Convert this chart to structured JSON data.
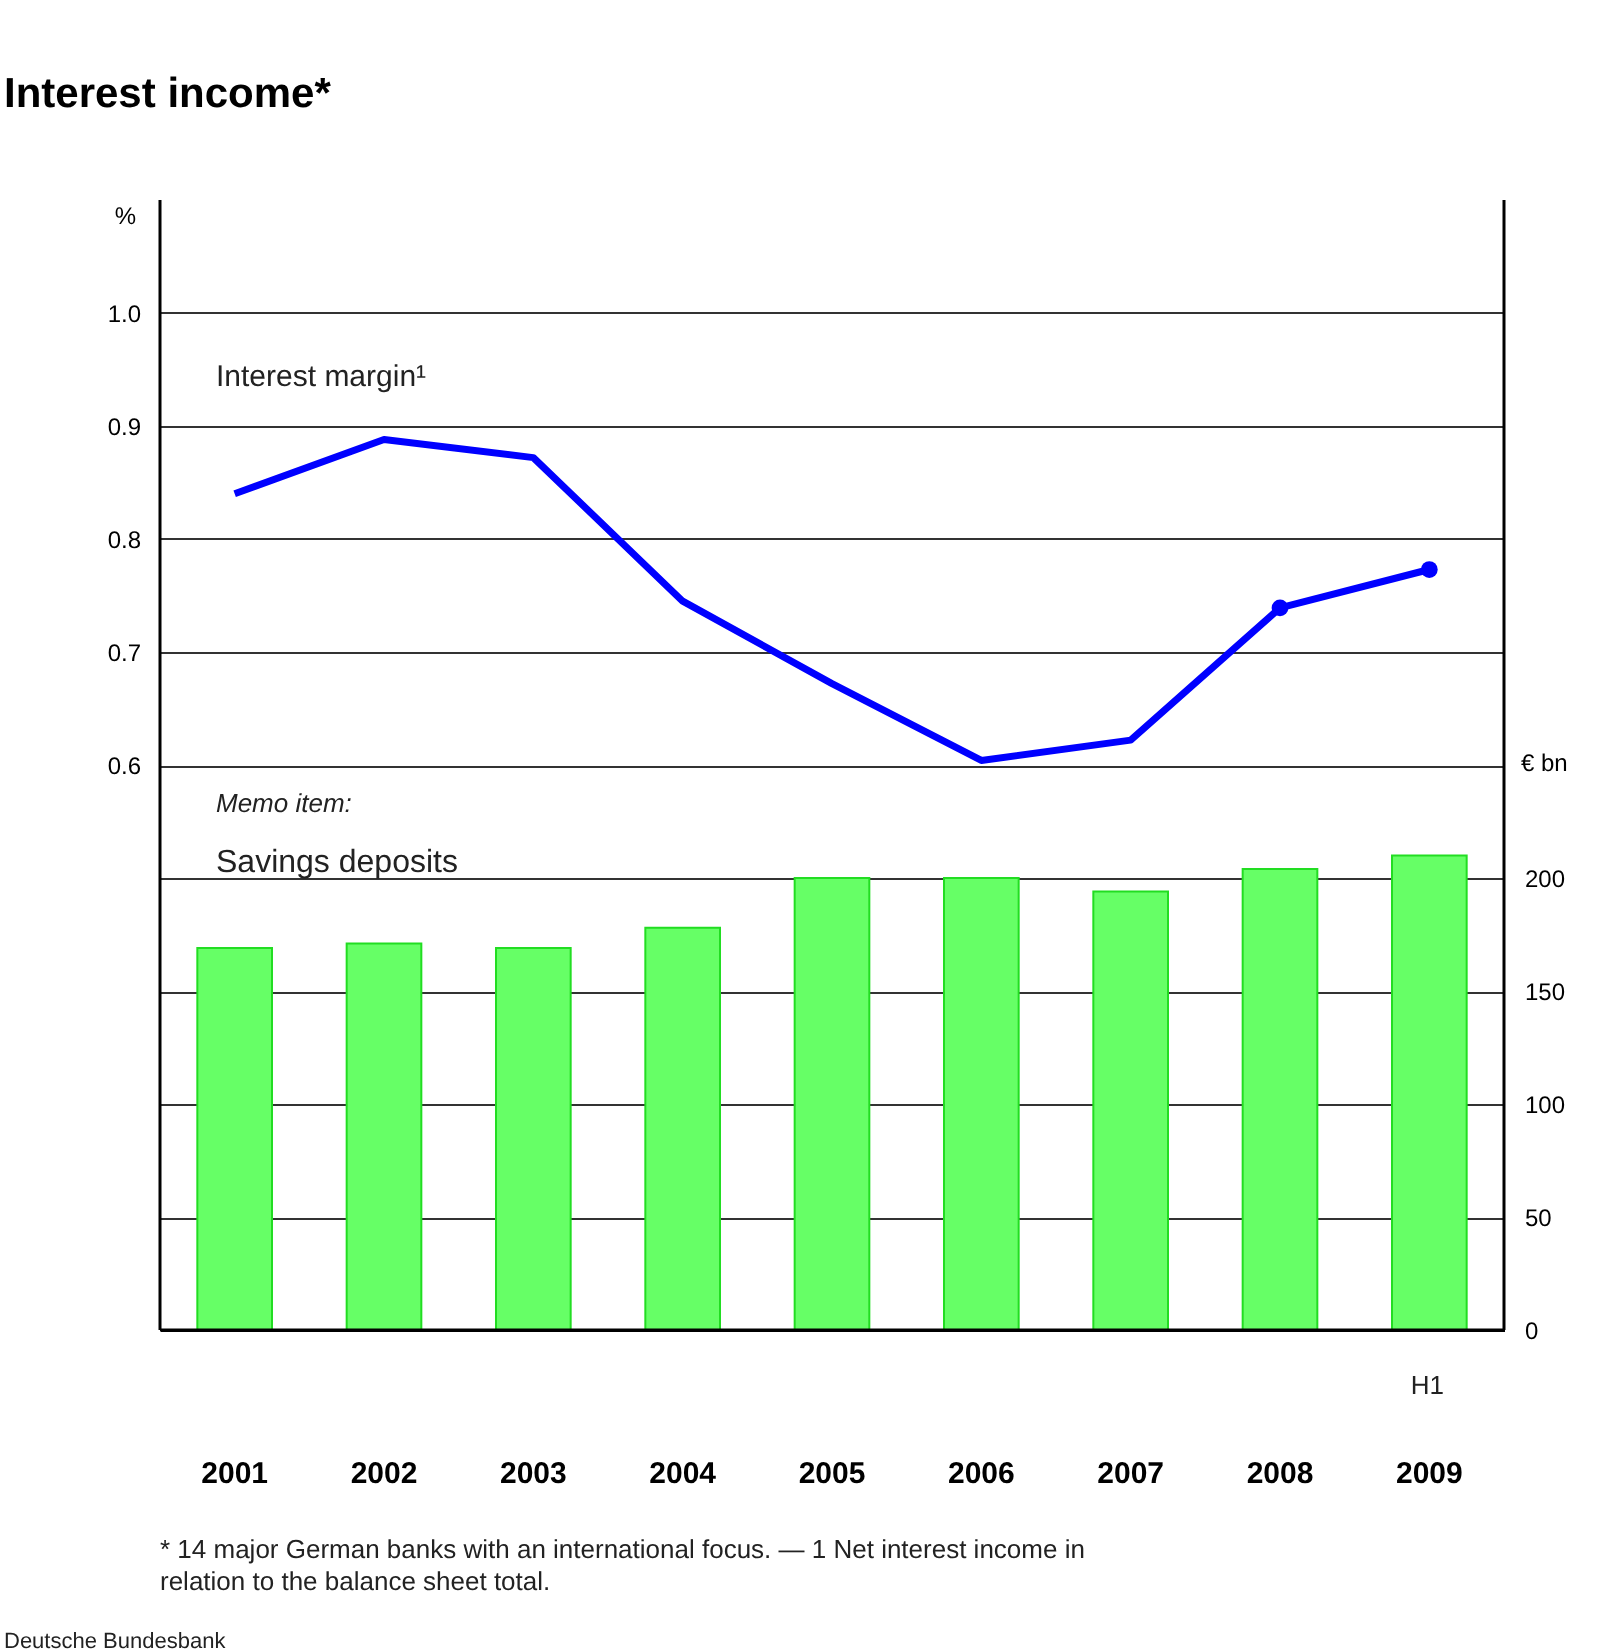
{
  "chart_data": {
    "type": "bar",
    "title": "Interest income*",
    "ylabel": "%",
    "y2label": "€ bn",
    "categories": [
      "2001",
      "2002",
      "2003",
      "2004",
      "2005",
      "2006",
      "2007",
      "2008",
      "2009"
    ],
    "series": [
      {
        "name": "Savings deposits",
        "axis": "y2",
        "color": "#66ff66",
        "values": [
          169,
          171,
          169,
          178,
          200,
          200,
          194,
          204,
          210
        ]
      },
      {
        "name": "Interest margin¹",
        "type": "line",
        "axis": "y",
        "color": "#0000ff",
        "marker": "none",
        "values": [
          0.84,
          0.888,
          0.872,
          0.745,
          0.672,
          0.604,
          0.622,
          0.739,
          null
        ]
      },
      {
        "type": "line",
        "axis": "y",
        "color": "#0000ff",
        "marker": "circle",
        "values": [
          null,
          null,
          null,
          null,
          null,
          null,
          null,
          0.739,
          0.773
        ]
      }
    ],
    "ylim": [
      0.1,
      1.1
    ],
    "yticks": [
      {
        "value": 0.6,
        "label": "0.6"
      },
      {
        "value": 0.7,
        "label": "0.7"
      },
      {
        "value": 0.8,
        "label": "0.8"
      },
      {
        "value": 0.9,
        "label": "0.9"
      },
      {
        "value": 1.0,
        "label": "1.0"
      }
    ],
    "y2lim": [
      0,
      500
    ],
    "y2ticks": [
      0,
      50,
      100,
      150,
      200
    ],
    "grid": true,
    "line_style": "solid",
    "annotations": [
      "Memo item:",
      "H1",
      "* 14 major German banks with an international focus. — 1 Net interest income in relation to the balance sheet total.",
      "Deutsche Bundesbank"
    ]
  }
}
